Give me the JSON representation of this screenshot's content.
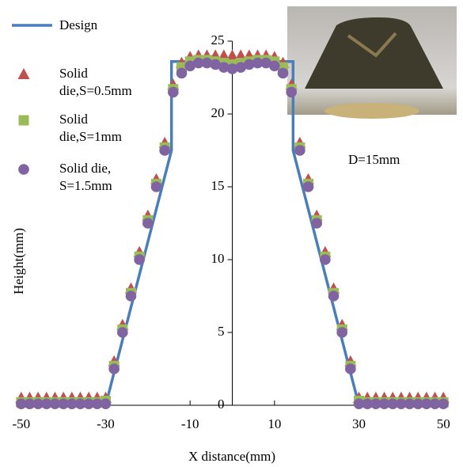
{
  "chart_data": {
    "type": "scatter",
    "xlabel": "X distance(mm)",
    "ylabel": "Height(mm)",
    "annotation": "D=15mm",
    "xlim": [
      -50,
      50
    ],
    "ylim": [
      0,
      25
    ],
    "xticks": [
      -50,
      -30,
      -10,
      10,
      30,
      50
    ],
    "yticks": [
      0,
      5,
      10,
      15,
      20,
      25
    ],
    "design": {
      "name": "Design",
      "color": "#4a7ebb",
      "x": [
        -50,
        -30,
        -14.4,
        -14.4,
        14.4,
        14.4,
        30,
        50
      ],
      "values": [
        0,
        0,
        17.5,
        23.6,
        23.6,
        17.5,
        0,
        0
      ]
    },
    "x": [
      -50,
      -48,
      -46,
      -44,
      -42,
      -40,
      -38,
      -36,
      -34,
      -32,
      -30,
      -28,
      -26,
      -24,
      -22,
      -20,
      -18,
      -16,
      -14,
      -12,
      -10,
      -8,
      -6,
      -4,
      -2,
      0,
      2,
      4,
      6,
      8,
      10,
      12,
      14,
      16,
      18,
      20,
      22,
      24,
      26,
      28,
      30,
      32,
      34,
      36,
      38,
      40,
      42,
      44,
      46,
      48,
      50
    ],
    "series": [
      {
        "name": "Solid die,S=0.5mm",
        "color": "#c0504d",
        "marker": "triangle",
        "values": [
          0.5,
          0.5,
          0.5,
          0.5,
          0.5,
          0.5,
          0.5,
          0.5,
          0.5,
          0.5,
          0.5,
          3,
          5.5,
          8,
          10.5,
          13,
          15.5,
          18,
          22,
          23.5,
          23.9,
          24,
          24,
          24,
          24,
          24,
          24,
          24,
          24,
          24,
          23.9,
          23.5,
          22,
          18,
          15.5,
          13,
          10.5,
          8,
          5.5,
          3,
          0.5,
          0.5,
          0.5,
          0.5,
          0.5,
          0.5,
          0.5,
          0.5,
          0.5,
          0.5,
          0.5
        ]
      },
      {
        "name": "Solid die,S=1mm",
        "color": "#9bbb59",
        "marker": "square",
        "values": [
          0.2,
          0.2,
          0.2,
          0.2,
          0.2,
          0.2,
          0.2,
          0.2,
          0.2,
          0.2,
          0.3,
          2.7,
          5.2,
          7.7,
          10.2,
          12.7,
          15.2,
          17.7,
          21.7,
          23.2,
          23.6,
          23.7,
          23.7,
          23.6,
          23.5,
          23.4,
          23.5,
          23.6,
          23.7,
          23.7,
          23.6,
          23.2,
          21.7,
          17.7,
          15.2,
          12.7,
          10.2,
          7.7,
          5.2,
          2.7,
          0.3,
          0.2,
          0.2,
          0.2,
          0.2,
          0.2,
          0.2,
          0.2,
          0.2,
          0.2,
          0.2
        ]
      },
      {
        "name": "Solid die, S=1.5mm",
        "color": "#8064a2",
        "marker": "circle",
        "values": [
          0.1,
          0.1,
          0.1,
          0.1,
          0.1,
          0.1,
          0.1,
          0.1,
          0.1,
          0.1,
          0.1,
          2.5,
          5,
          7.5,
          10,
          12.5,
          15,
          17.5,
          21.5,
          22.8,
          23.3,
          23.5,
          23.5,
          23.4,
          23.2,
          23.1,
          23.2,
          23.4,
          23.5,
          23.5,
          23.3,
          22.8,
          21.5,
          17.5,
          15,
          12.5,
          10,
          7.5,
          5,
          2.5,
          0.1,
          0.1,
          0.1,
          0.1,
          0.1,
          0.1,
          0.1,
          0.1,
          0.1,
          0.1,
          0.1
        ]
      }
    ]
  }
}
